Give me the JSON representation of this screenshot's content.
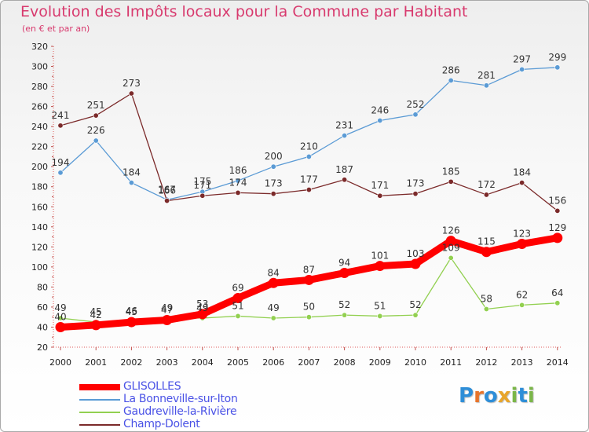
{
  "title": "Evolution des Impôts locaux pour la Commune par Habitant",
  "subtitle": "(en € et par an)",
  "logo_text": "Proxiti",
  "chart_data": {
    "type": "line",
    "categories": [
      "2000",
      "2001",
      "2002",
      "2003",
      "2004",
      "2005",
      "2006",
      "2007",
      "2008",
      "2009",
      "2010",
      "2011",
      "2012",
      "2013",
      "2014"
    ],
    "ylim": [
      20,
      320
    ],
    "yticks": [
      20,
      40,
      60,
      80,
      100,
      120,
      140,
      160,
      180,
      200,
      220,
      240,
      260,
      280,
      300,
      320
    ],
    "grid": false,
    "legend_position": "bottom-left",
    "series": [
      {
        "name": "GLISOLLES",
        "color": "#ff0000",
        "values": [
          40,
          42,
          45,
          47,
          53,
          69,
          84,
          87,
          94,
          101,
          103,
          126,
          115,
          123,
          129
        ]
      },
      {
        "name": "La Bonneville-sur-Iton",
        "color": "#5b9bd5",
        "values": [
          194,
          226,
          184,
          167,
          175,
          186,
          200,
          210,
          231,
          246,
          252,
          286,
          281,
          297,
          299
        ]
      },
      {
        "name": "Gaudreville-la-Rivière",
        "color": "#92d050",
        "values": [
          49,
          45,
          46,
          49,
          49,
          51,
          49,
          50,
          52,
          51,
          52,
          109,
          58,
          62,
          64
        ]
      },
      {
        "name": "Champ-Dolent",
        "color": "#7b2a2a",
        "values": [
          241,
          251,
          273,
          166,
          171,
          174,
          173,
          177,
          187,
          171,
          173,
          185,
          172,
          184,
          156
        ]
      }
    ]
  }
}
